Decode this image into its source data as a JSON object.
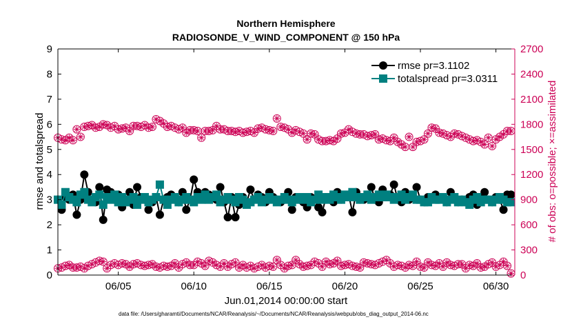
{
  "chart_data": {
    "type": "line",
    "title": "Northern Hemisphere",
    "subtitle": "RADIOSONDE_V_WIND_COMPONENT @ 150 hPa",
    "xlabel": "Jun.01,2014 00:00:00 start",
    "ylabel": "rmse and totalspread",
    "ylabel_right": "# of obs: o=possible; ×=assimilated",
    "footnote": "data file: /Users/gharamti/Documents/NCAR/Reanalysis/~/Documents/NCAR/Reanalysis/webpub/obs_diag_output_2014-06.nc",
    "xlim": [
      1.0,
      31.25
    ],
    "ylim": [
      0,
      9
    ],
    "ylim_right": [
      0,
      2700
    ],
    "x_ticks": [
      5,
      10,
      15,
      20,
      25,
      30
    ],
    "x_tick_labels": [
      "06/05",
      "06/10",
      "06/15",
      "06/20",
      "06/25",
      "06/30"
    ],
    "y_ticks": [
      0,
      1,
      2,
      3,
      4,
      5,
      6,
      7,
      8,
      9
    ],
    "y_tick_labels": [
      "0",
      "1",
      "2",
      "3",
      "4",
      "5",
      "6",
      "7",
      "8",
      "9"
    ],
    "y_ticks_right": [
      0,
      300,
      600,
      900,
      1200,
      1500,
      1800,
      2100,
      2400,
      2700
    ],
    "y_tick_labels_right": [
      "0",
      "300",
      "600",
      "900",
      "1200",
      "1500",
      "1800",
      "2100",
      "2400",
      "2700"
    ],
    "legend_position": "top-right",
    "colors": {
      "rmse": "#000000",
      "totalspread": "#008080",
      "obs": "#cc0055",
      "axes": "#000000"
    },
    "series": [
      {
        "name": "rmse",
        "legend_label": "rmse pr=3.1102",
        "x": [
          1.0,
          1.25,
          1.5,
          1.75,
          2.0,
          2.25,
          2.5,
          2.75,
          3.0,
          3.25,
          3.5,
          3.75,
          4.0,
          4.25,
          4.5,
          4.75,
          5.0,
          5.25,
          5.5,
          5.75,
          6.0,
          6.25,
          6.5,
          6.75,
          7.0,
          7.25,
          7.5,
          7.75,
          8.0,
          8.25,
          8.5,
          8.75,
          9.0,
          9.25,
          9.5,
          9.75,
          10.0,
          10.25,
          10.5,
          10.75,
          11.0,
          11.25,
          11.5,
          11.75,
          12.0,
          12.25,
          12.5,
          12.75,
          13.0,
          13.25,
          13.5,
          13.75,
          14.0,
          14.25,
          14.5,
          14.75,
          15.0,
          15.25,
          15.5,
          15.75,
          16.0,
          16.25,
          16.5,
          16.75,
          17.0,
          17.25,
          17.5,
          17.75,
          18.0,
          18.25,
          18.5,
          18.75,
          19.0,
          19.25,
          19.5,
          19.75,
          20.0,
          20.25,
          20.5,
          20.75,
          21.0,
          21.25,
          21.5,
          21.75,
          22.0,
          22.25,
          22.5,
          22.75,
          23.0,
          23.25,
          23.5,
          23.75,
          24.0,
          24.25,
          24.5,
          24.75,
          25.0,
          25.25,
          25.5,
          25.75,
          26.0,
          26.25,
          26.5,
          26.75,
          27.0,
          27.25,
          27.5,
          27.75,
          28.0,
          28.25,
          28.5,
          28.75,
          29.0,
          29.25,
          29.5,
          29.75,
          30.0,
          30.25,
          30.5,
          30.75,
          31.0
        ],
        "values": [
          3.0,
          2.6,
          3.1,
          3.0,
          3.2,
          2.4,
          3.0,
          4.0,
          3.3,
          3.0,
          2.9,
          3.5,
          2.2,
          3.4,
          3.3,
          3.0,
          3.2,
          2.7,
          3.0,
          3.3,
          2.8,
          3.5,
          3.1,
          3.0,
          2.6,
          2.9,
          3.1,
          2.4,
          3.0,
          3.1,
          3.2,
          3.0,
          2.9,
          3.3,
          2.6,
          3.0,
          3.8,
          3.3,
          3.2,
          3.3,
          3.2,
          3.1,
          3.0,
          3.5,
          2.9,
          2.3,
          3.1,
          2.3,
          2.8,
          3.1,
          2.9,
          3.4,
          3.0,
          3.2,
          3.1,
          2.9,
          3.3,
          3.1,
          3.0,
          2.9,
          3.0,
          3.3,
          2.6,
          3.1,
          3.0,
          2.9,
          2.7,
          3.1,
          3.0,
          2.7,
          2.5,
          3.1,
          3.0,
          2.9,
          3.3,
          3.0,
          3.1,
          3.2,
          2.5,
          3.3,
          3.0,
          3.0,
          3.2,
          3.5,
          3.0,
          2.9,
          3.4,
          3.1,
          3.2,
          3.6,
          3.0,
          2.9,
          3.3,
          3.0,
          3.1,
          3.5,
          3.0,
          2.9,
          3.1,
          3.0,
          3.2,
          3.1,
          3.0,
          2.9,
          3.3,
          3.0,
          2.9,
          3.0,
          2.9,
          3.1,
          3.2,
          2.8,
          3.1,
          3.3,
          3.0,
          2.9,
          3.1,
          3.0,
          2.6,
          3.2,
          3.2
        ]
      },
      {
        "name": "totalspread",
        "legend_label": "totalspread pr=3.0311",
        "x": [
          1.0,
          1.25,
          1.5,
          1.75,
          2.0,
          2.25,
          2.5,
          2.75,
          3.0,
          3.25,
          3.5,
          3.75,
          4.0,
          4.25,
          4.5,
          4.75,
          5.0,
          5.25,
          5.5,
          5.75,
          6.0,
          6.25,
          6.5,
          6.75,
          7.0,
          7.25,
          7.5,
          7.75,
          8.0,
          8.25,
          8.5,
          8.75,
          9.0,
          9.25,
          9.5,
          9.75,
          10.0,
          10.25,
          10.5,
          10.75,
          11.0,
          11.25,
          11.5,
          11.75,
          12.0,
          12.25,
          12.5,
          12.75,
          13.0,
          13.25,
          13.5,
          13.75,
          14.0,
          14.25,
          14.5,
          14.75,
          15.0,
          15.25,
          15.5,
          15.75,
          16.0,
          16.25,
          16.5,
          16.75,
          17.0,
          17.25,
          17.5,
          17.75,
          18.0,
          18.25,
          18.5,
          18.75,
          19.0,
          19.25,
          19.5,
          19.75,
          20.0,
          20.25,
          20.5,
          20.75,
          21.0,
          21.25,
          21.5,
          21.75,
          22.0,
          22.25,
          22.5,
          22.75,
          23.0,
          23.25,
          23.5,
          23.75,
          24.0,
          24.25,
          24.5,
          24.75,
          25.0,
          25.25,
          25.5,
          25.75,
          26.0,
          26.25,
          26.5,
          26.75,
          27.0,
          27.25,
          27.5,
          27.75,
          28.0,
          28.25,
          28.5,
          28.75,
          29.0,
          29.25,
          29.5,
          29.75,
          30.0,
          30.25,
          30.5,
          30.75,
          31.0
        ],
        "values": [
          3.0,
          2.8,
          3.3,
          3.1,
          3.0,
          2.9,
          3.2,
          3.3,
          3.0,
          2.9,
          3.1,
          3.2,
          2.8,
          3.1,
          3.0,
          3.2,
          2.9,
          3.1,
          2.9,
          3.0,
          3.1,
          2.8,
          3.0,
          3.1,
          2.9,
          3.0,
          3.1,
          3.6,
          3.0,
          2.8,
          3.0,
          3.1,
          2.9,
          3.0,
          3.1,
          3.0,
          2.9,
          3.1,
          3.0,
          3.2,
          3.0,
          3.1,
          3.2,
          2.9,
          3.0,
          3.1,
          3.0,
          2.9,
          3.1,
          3.0,
          2.8,
          2.9,
          3.0,
          3.1,
          2.9,
          3.0,
          3.1,
          3.0,
          2.9,
          3.0,
          3.1,
          3.0,
          2.9,
          3.0,
          3.1,
          3.0,
          3.1,
          2.9,
          3.0,
          3.2,
          3.0,
          3.1,
          3.0,
          3.2,
          3.1,
          3.0,
          3.2,
          3.1,
          3.3,
          3.1,
          3.0,
          3.1,
          3.2,
          3.0,
          3.1,
          3.2,
          3.1,
          3.2,
          3.1,
          3.0,
          3.1,
          3.2,
          3.0,
          3.1,
          3.2,
          3.0,
          3.0,
          2.9,
          2.9,
          3.1,
          3.0,
          3.0,
          3.1,
          2.9,
          3.0,
          3.1,
          2.9,
          3.0,
          2.9,
          2.8,
          3.0,
          3.1,
          2.9,
          3.0,
          3.0,
          2.9,
          3.0,
          3.1,
          3.0,
          2.9,
          2.9
        ]
      },
      {
        "name": "obs upper (right axis)",
        "x": [
          1.0,
          1.25,
          1.5,
          1.75,
          2.0,
          2.25,
          2.5,
          2.75,
          3.0,
          3.25,
          3.5,
          3.75,
          4.0,
          4.25,
          4.5,
          4.75,
          5.0,
          5.25,
          5.5,
          5.75,
          6.0,
          6.25,
          6.5,
          6.75,
          7.0,
          7.25,
          7.5,
          7.75,
          8.0,
          8.25,
          8.5,
          8.75,
          9.0,
          9.25,
          9.5,
          9.75,
          10.0,
          10.25,
          10.5,
          10.75,
          11.0,
          11.25,
          11.5,
          11.75,
          12.0,
          12.25,
          12.5,
          12.75,
          13.0,
          13.25,
          13.5,
          13.75,
          14.0,
          14.25,
          14.5,
          14.75,
          15.0,
          15.25,
          15.5,
          15.75,
          16.0,
          16.25,
          16.5,
          16.75,
          17.0,
          17.25,
          17.5,
          17.75,
          18.0,
          18.25,
          18.5,
          18.75,
          19.0,
          19.25,
          19.5,
          19.75,
          20.0,
          20.25,
          20.5,
          20.75,
          21.0,
          21.25,
          21.5,
          21.75,
          22.0,
          22.25,
          22.5,
          22.75,
          23.0,
          23.25,
          23.5,
          23.75,
          24.0,
          24.25,
          24.5,
          24.75,
          25.0,
          25.25,
          25.5,
          25.75,
          26.0,
          26.25,
          26.5,
          26.75,
          27.0,
          27.25,
          27.5,
          27.75,
          28.0,
          28.25,
          28.5,
          28.75,
          29.0,
          29.25,
          29.5,
          29.75,
          30.0,
          30.25,
          30.5,
          30.75,
          31.0
        ],
        "values": [
          1640,
          1620,
          1610,
          1640,
          1610,
          1740,
          1650,
          1770,
          1780,
          1790,
          1760,
          1770,
          1800,
          1790,
          1760,
          1780,
          1740,
          1750,
          1760,
          1720,
          1780,
          1780,
          1770,
          1790,
          1760,
          1770,
          1860,
          1840,
          1810,
          1770,
          1780,
          1760,
          1740,
          1760,
          1700,
          1730,
          1730,
          1720,
          1640,
          1720,
          1720,
          1730,
          1780,
          1740,
          1740,
          1720,
          1720,
          1710,
          1720,
          1700,
          1710,
          1720,
          1700,
          1750,
          1760,
          1740,
          1730,
          1720,
          1870,
          1770,
          1760,
          1740,
          1700,
          1730,
          1710,
          1690,
          1620,
          1690,
          1680,
          1620,
          1600,
          1600,
          1610,
          1600,
          1630,
          1690,
          1700,
          1740,
          1710,
          1690,
          1680,
          1680,
          1660,
          1670,
          1680,
          1620,
          1630,
          1610,
          1600,
          1640,
          1590,
          1560,
          1530,
          1650,
          1530,
          1590,
          1600,
          1620,
          1690,
          1760,
          1750,
          1700,
          1690,
          1670,
          1650,
          1690,
          1680,
          1660,
          1640,
          1620,
          1600,
          1610,
          1590,
          1560,
          1640,
          1540,
          1620,
          1650,
          1680,
          1720,
          1720
        ]
      },
      {
        "name": "obs lower (right axis)",
        "x": [
          1.0,
          1.25,
          1.5,
          1.75,
          2.0,
          2.25,
          2.5,
          2.75,
          3.0,
          3.25,
          3.5,
          3.75,
          4.0,
          4.25,
          4.5,
          4.75,
          5.0,
          5.25,
          5.5,
          5.75,
          6.0,
          6.25,
          6.5,
          6.75,
          7.0,
          7.25,
          7.5,
          7.75,
          8.0,
          8.25,
          8.5,
          8.75,
          9.0,
          9.25,
          9.5,
          9.75,
          10.0,
          10.25,
          10.5,
          10.75,
          11.0,
          11.25,
          11.5,
          11.75,
          12.0,
          12.25,
          12.5,
          12.75,
          13.0,
          13.25,
          13.5,
          13.75,
          14.0,
          14.25,
          14.5,
          14.75,
          15.0,
          15.25,
          15.5,
          15.75,
          16.0,
          16.25,
          16.5,
          16.75,
          17.0,
          17.25,
          17.5,
          17.75,
          18.0,
          18.25,
          18.5,
          18.75,
          19.0,
          19.25,
          19.5,
          19.75,
          20.0,
          20.25,
          20.5,
          20.75,
          21.0,
          21.25,
          21.5,
          21.75,
          22.0,
          22.25,
          22.5,
          22.75,
          23.0,
          23.25,
          23.5,
          23.75,
          24.0,
          24.25,
          24.5,
          24.75,
          25.0,
          25.25,
          25.5,
          25.75,
          26.0,
          26.25,
          26.5,
          26.75,
          27.0,
          27.25,
          27.5,
          27.75,
          28.0,
          28.25,
          28.5,
          28.75,
          29.0,
          29.25,
          29.5,
          29.75,
          30.0,
          30.25,
          30.5,
          30.75,
          31.0
        ],
        "values": [
          80,
          90,
          110,
          120,
          90,
          90,
          100,
          80,
          110,
          130,
          150,
          170,
          160,
          80,
          120,
          140,
          120,
          140,
          130,
          100,
          130,
          140,
          120,
          110,
          120,
          130,
          100,
          90,
          110,
          100,
          110,
          140,
          90,
          130,
          150,
          120,
          120,
          160,
          140,
          110,
          170,
          150,
          120,
          100,
          140,
          100,
          130,
          150,
          90,
          120,
          90,
          110,
          80,
          100,
          120,
          90,
          110,
          100,
          180,
          120,
          80,
          110,
          120,
          180,
          130,
          100,
          110,
          120,
          160,
          140,
          100,
          160,
          130,
          140,
          170,
          110,
          120,
          130,
          110,
          100,
          90,
          150,
          140,
          130,
          120,
          140,
          160,
          180,
          140,
          100,
          120,
          110,
          90,
          120,
          110,
          160,
          100,
          90,
          150,
          120,
          110,
          140,
          100,
          150,
          120,
          110,
          130,
          130,
          80,
          120,
          110,
          140,
          90,
          100,
          130,
          150,
          100,
          120,
          160,
          110,
          20
        ]
      }
    ]
  }
}
